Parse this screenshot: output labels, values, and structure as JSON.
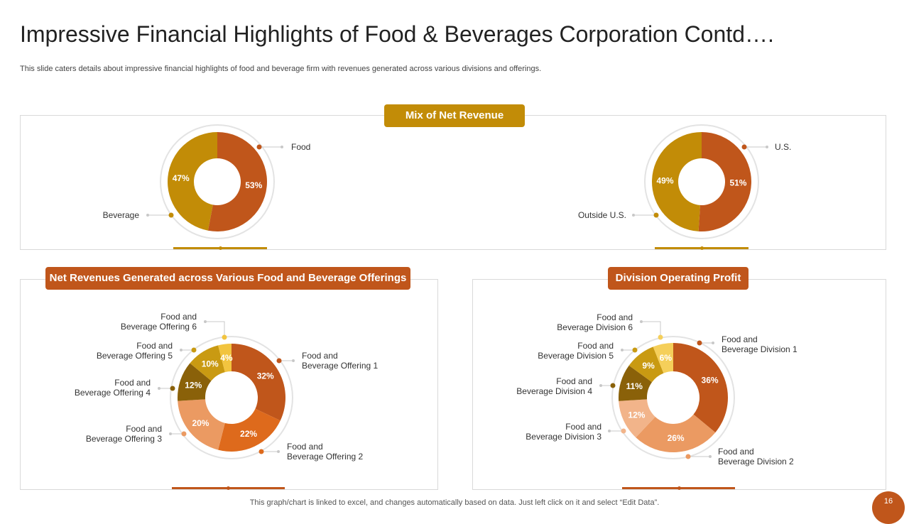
{
  "title": "Impressive Financial Highlights of Food & Beverages Corporation Contd….",
  "subtitle": "This slide caters details about impressive financial highlights of food and beverage firm with revenues generated across various divisions and offerings.",
  "colors": {
    "gold": "#c28c07",
    "rust": "#c0561b",
    "orange": "#de6a1c",
    "peach": "#eb9a62",
    "peach_light": "#f2b48a",
    "olive": "#8a6109",
    "mustard": "#c99a12",
    "yellow": "#f2c43f",
    "light_yellow": "#f5cf5a",
    "ring": "#e3e3e3",
    "connector": "#c8c8c8"
  },
  "headers": {
    "mix_of_net_revenue": "Mix of Net Revenue",
    "net_revenues_offerings": "Net Revenues Generated across Various Food and Beverage Offerings",
    "division_operating_profit": "Division Operating Profit"
  },
  "chart_data": [
    {
      "type": "pie",
      "title": "Mix of Net Revenue (by category)",
      "categories": [
        "Food",
        "Beverage"
      ],
      "values": [
        53,
        47
      ],
      "labels": [
        "53%",
        "47%"
      ],
      "legend": [
        [
          "Food"
        ],
        [
          "Beverage"
        ]
      ],
      "colors": [
        "#c0561b",
        "#c28c07"
      ]
    },
    {
      "type": "pie",
      "title": "Mix of Net Revenue (by region)",
      "categories": [
        "U.S.",
        "Outside U.S."
      ],
      "values": [
        51,
        49
      ],
      "labels": [
        "51%",
        "49%"
      ],
      "legend": [
        [
          "U.S."
        ],
        [
          "Outside U.S."
        ]
      ],
      "colors": [
        "#c0561b",
        "#c28c07"
      ]
    },
    {
      "type": "pie",
      "title": "Net Revenues Generated across Various Food and Beverage Offerings",
      "categories": [
        "Food and Beverage Offering 1",
        "Food and Beverage Offering 2",
        "Food and Beverage Offering 3",
        "Food and Beverage Offering 4",
        "Food and Beverage Offering 5",
        "Food and Beverage Offering 6"
      ],
      "values": [
        32,
        22,
        20,
        12,
        10,
        4
      ],
      "labels": [
        "32%",
        "22%",
        "20%",
        "12%",
        "10%",
        "4%"
      ],
      "legend": [
        [
          "Food and",
          "Beverage Offering 1"
        ],
        [
          "Food and",
          "Beverage Offering 2"
        ],
        [
          "Food and",
          "Beverage Offering 3"
        ],
        [
          "Food and",
          "Beverage Offering 4"
        ],
        [
          "Food and",
          "Beverage Offering 5"
        ],
        [
          "Food and",
          "Beverage Offering 6"
        ]
      ],
      "colors": [
        "#c0561b",
        "#de6a1c",
        "#eb9a62",
        "#8a6109",
        "#c99a12",
        "#f2c43f"
      ]
    },
    {
      "type": "pie",
      "title": "Division Operating Profit",
      "categories": [
        "Food and Beverage Division 1",
        "Food and Beverage Division 2",
        "Food and Beverage Division 3",
        "Food and Beverage Division 4",
        "Food and Beverage Division 5",
        "Food and Beverage Division 6"
      ],
      "values": [
        36,
        26,
        12,
        11,
        9,
        6
      ],
      "labels": [
        "36%",
        "26%",
        "12%",
        "11%",
        "9%",
        "6%"
      ],
      "legend": [
        [
          "Food and",
          "Beverage Division 1"
        ],
        [
          "Food and",
          "Beverage Division 2"
        ],
        [
          "Food and",
          "Beverage Division 3"
        ],
        [
          "Food and",
          "Beverage Division 4"
        ],
        [
          "Food and",
          "Beverage Division 5"
        ],
        [
          "Food and",
          "Beverage Division 6"
        ]
      ],
      "colors": [
        "#c0561b",
        "#eb9a62",
        "#f2b48a",
        "#8a6109",
        "#c99a12",
        "#f5cf5a"
      ]
    }
  ],
  "footnote": "This graph/chart is linked to excel,  and changes automatically based on data. Just left click on it and select “Edit Data”.",
  "page_number": "16"
}
